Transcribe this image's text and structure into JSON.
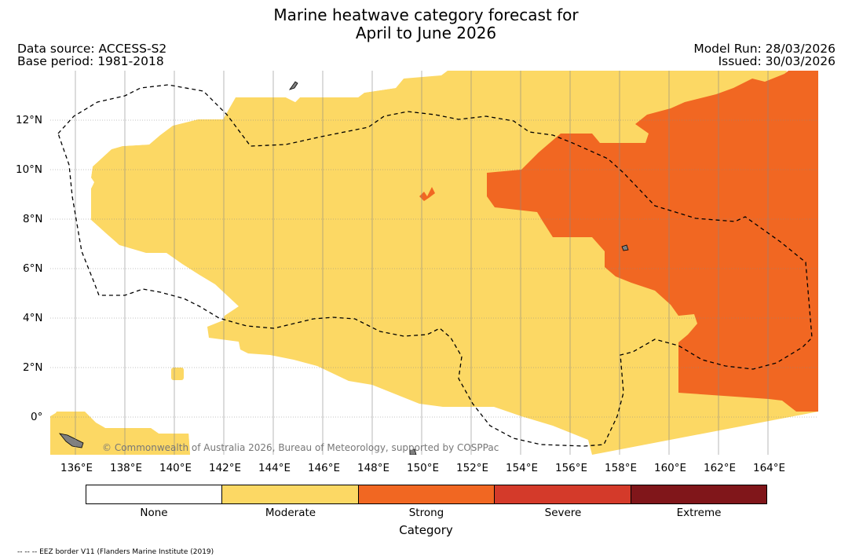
{
  "header": {
    "title_line1": "Marine heatwave category forecast for",
    "title_line2": "April to June 2026",
    "data_source": "Data source: ACCESS-S2",
    "base_period": "Base period: 1981-2018",
    "model_run": "Model Run: 28/03/2026",
    "issued": "Issued: 30/03/2026"
  },
  "map": {
    "copyright": "© Commonwealth of Australia 2026, Bureau of Meteorology, supported by COSPPac",
    "lon_ticks": [
      "136°E",
      "138°E",
      "140°E",
      "142°E",
      "144°E",
      "146°E",
      "148°E",
      "150°E",
      "152°E",
      "154°E",
      "156°E",
      "158°E",
      "160°E",
      "162°E",
      "164°E"
    ],
    "lat_ticks": [
      "12°N",
      "10°N",
      "8°N",
      "6°N",
      "4°N",
      "2°N",
      "0°"
    ],
    "extent": {
      "lon": [
        135,
        166
      ],
      "lat": [
        -1.5,
        14
      ]
    },
    "colors": {
      "none": "#ffffff",
      "moderate": "#fcd864",
      "strong": "#f16722",
      "land": "#808080"
    }
  },
  "colorbar": {
    "title": "Category",
    "categories": [
      {
        "label": "None",
        "color": "#ffffff"
      },
      {
        "label": "Moderate",
        "color": "#fcd864"
      },
      {
        "label": "Strong",
        "color": "#f16722"
      },
      {
        "label": "Severe",
        "color": "#d43a2a"
      },
      {
        "label": "Extreme",
        "color": "#80161a"
      }
    ]
  },
  "footnote": "-- -- -- EEZ border V11 (Flanders Marine Institute (2019)"
}
